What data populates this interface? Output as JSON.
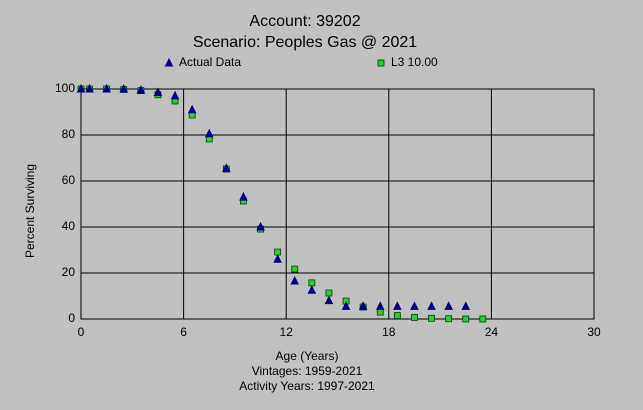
{
  "chart_data": {
    "type": "scatter",
    "title": "Account: 39202",
    "subtitle": "Scenario: Peoples Gas @ 2021",
    "xlabel": "Age (Years)",
    "ylabel": "Percent Surviving",
    "notes": [
      "Vintages: 1959-2021",
      "Activity Years: 1997-2021"
    ],
    "xlim": [
      0,
      30
    ],
    "xticks": [
      0,
      6,
      12,
      18,
      24,
      30
    ],
    "ylim": [
      0,
      100
    ],
    "yticks": [
      0,
      20,
      40,
      60,
      80,
      100
    ],
    "grid": true,
    "legend": "top",
    "series": [
      {
        "name": "Actual Data",
        "color": "#000080",
        "marker": "triangle",
        "x": [
          0,
          0.5,
          1.5,
          2.5,
          3.5,
          4.5,
          5.5,
          6.5,
          7.5,
          8.5,
          9.5,
          10.5,
          11.5,
          12.5,
          13.5,
          14.5,
          15.5,
          16.5,
          17.5,
          18.5,
          19.5,
          20.5,
          21.5,
          22.5
        ],
        "values": [
          100,
          100,
          100,
          100,
          99.5,
          98.5,
          97,
          91,
          80.5,
          65.5,
          53,
          40,
          26,
          16.5,
          12.5,
          8,
          5.5,
          5.5,
          5.5,
          5.5,
          5.5,
          5.5,
          5.5,
          5.5
        ]
      },
      {
        "name": "L3 10.00",
        "color": "#33cc33",
        "marker": "square",
        "x": [
          0,
          0.5,
          1.5,
          2.5,
          3.5,
          4.5,
          5.5,
          6.5,
          7.5,
          8.5,
          9.5,
          10.5,
          11.5,
          12.5,
          13.5,
          14.5,
          15.5,
          16.5,
          17.5,
          18.5,
          19.5,
          20.5,
          21.5,
          22.5,
          23.5
        ],
        "values": [
          100,
          100,
          100,
          99.8,
          99.3,
          97.5,
          94.8,
          88.7,
          78.3,
          65.2,
          51.3,
          39.1,
          29.1,
          21.7,
          15.7,
          11.3,
          7.8,
          5.2,
          3,
          1.5,
          0.7,
          0.3,
          0.1,
          0,
          0
        ]
      }
    ]
  }
}
